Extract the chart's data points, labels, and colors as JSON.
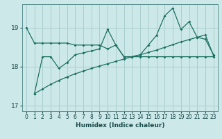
{
  "xlabel": "Humidex (Indice chaleur)",
  "ylabel": "",
  "background_color": "#cde8e8",
  "grid_color": "#aacece",
  "line_color": "#1a7060",
  "xlim": [
    -0.5,
    23.5
  ],
  "ylim": [
    16.85,
    19.6
  ],
  "yticks": [
    17,
    18,
    19
  ],
  "xticks": [
    0,
    1,
    2,
    3,
    4,
    5,
    6,
    7,
    8,
    9,
    10,
    11,
    12,
    13,
    14,
    15,
    16,
    17,
    18,
    19,
    20,
    21,
    22,
    23
  ],
  "line1_x": [
    0,
    1,
    2,
    3,
    4,
    5,
    6,
    7,
    8,
    9,
    10,
    11,
    12,
    13,
    14,
    15,
    16,
    17,
    18,
    19,
    20,
    21,
    22,
    23
  ],
  "line1_y": [
    19.0,
    18.6,
    18.6,
    18.6,
    18.6,
    18.6,
    18.55,
    18.55,
    18.55,
    18.55,
    18.45,
    18.55,
    18.25,
    18.25,
    18.25,
    18.25,
    18.25,
    18.25,
    18.25,
    18.25,
    18.25,
    18.25,
    18.25,
    18.25
  ],
  "line2_x": [
    1,
    2,
    3,
    4,
    5,
    6,
    7,
    8,
    9,
    10,
    11,
    12,
    13,
    14,
    15,
    16,
    17,
    18,
    19,
    20,
    21,
    22,
    23
  ],
  "line2_y": [
    17.3,
    18.25,
    18.25,
    17.95,
    18.1,
    18.3,
    18.35,
    18.4,
    18.45,
    18.95,
    18.55,
    18.25,
    18.25,
    18.3,
    18.55,
    18.8,
    19.3,
    19.5,
    18.95,
    19.15,
    18.75,
    18.7,
    18.3
  ],
  "line3_x": [
    1,
    2,
    3,
    4,
    5,
    6,
    7,
    8,
    9,
    10,
    11,
    12,
    13,
    14,
    15,
    16,
    17,
    18,
    19,
    20,
    21,
    22,
    23
  ],
  "line3_y": [
    17.3,
    17.42,
    17.54,
    17.64,
    17.73,
    17.81,
    17.88,
    17.95,
    18.01,
    18.07,
    18.13,
    18.19,
    18.25,
    18.3,
    18.36,
    18.42,
    18.49,
    18.56,
    18.63,
    18.69,
    18.75,
    18.81,
    18.28
  ]
}
